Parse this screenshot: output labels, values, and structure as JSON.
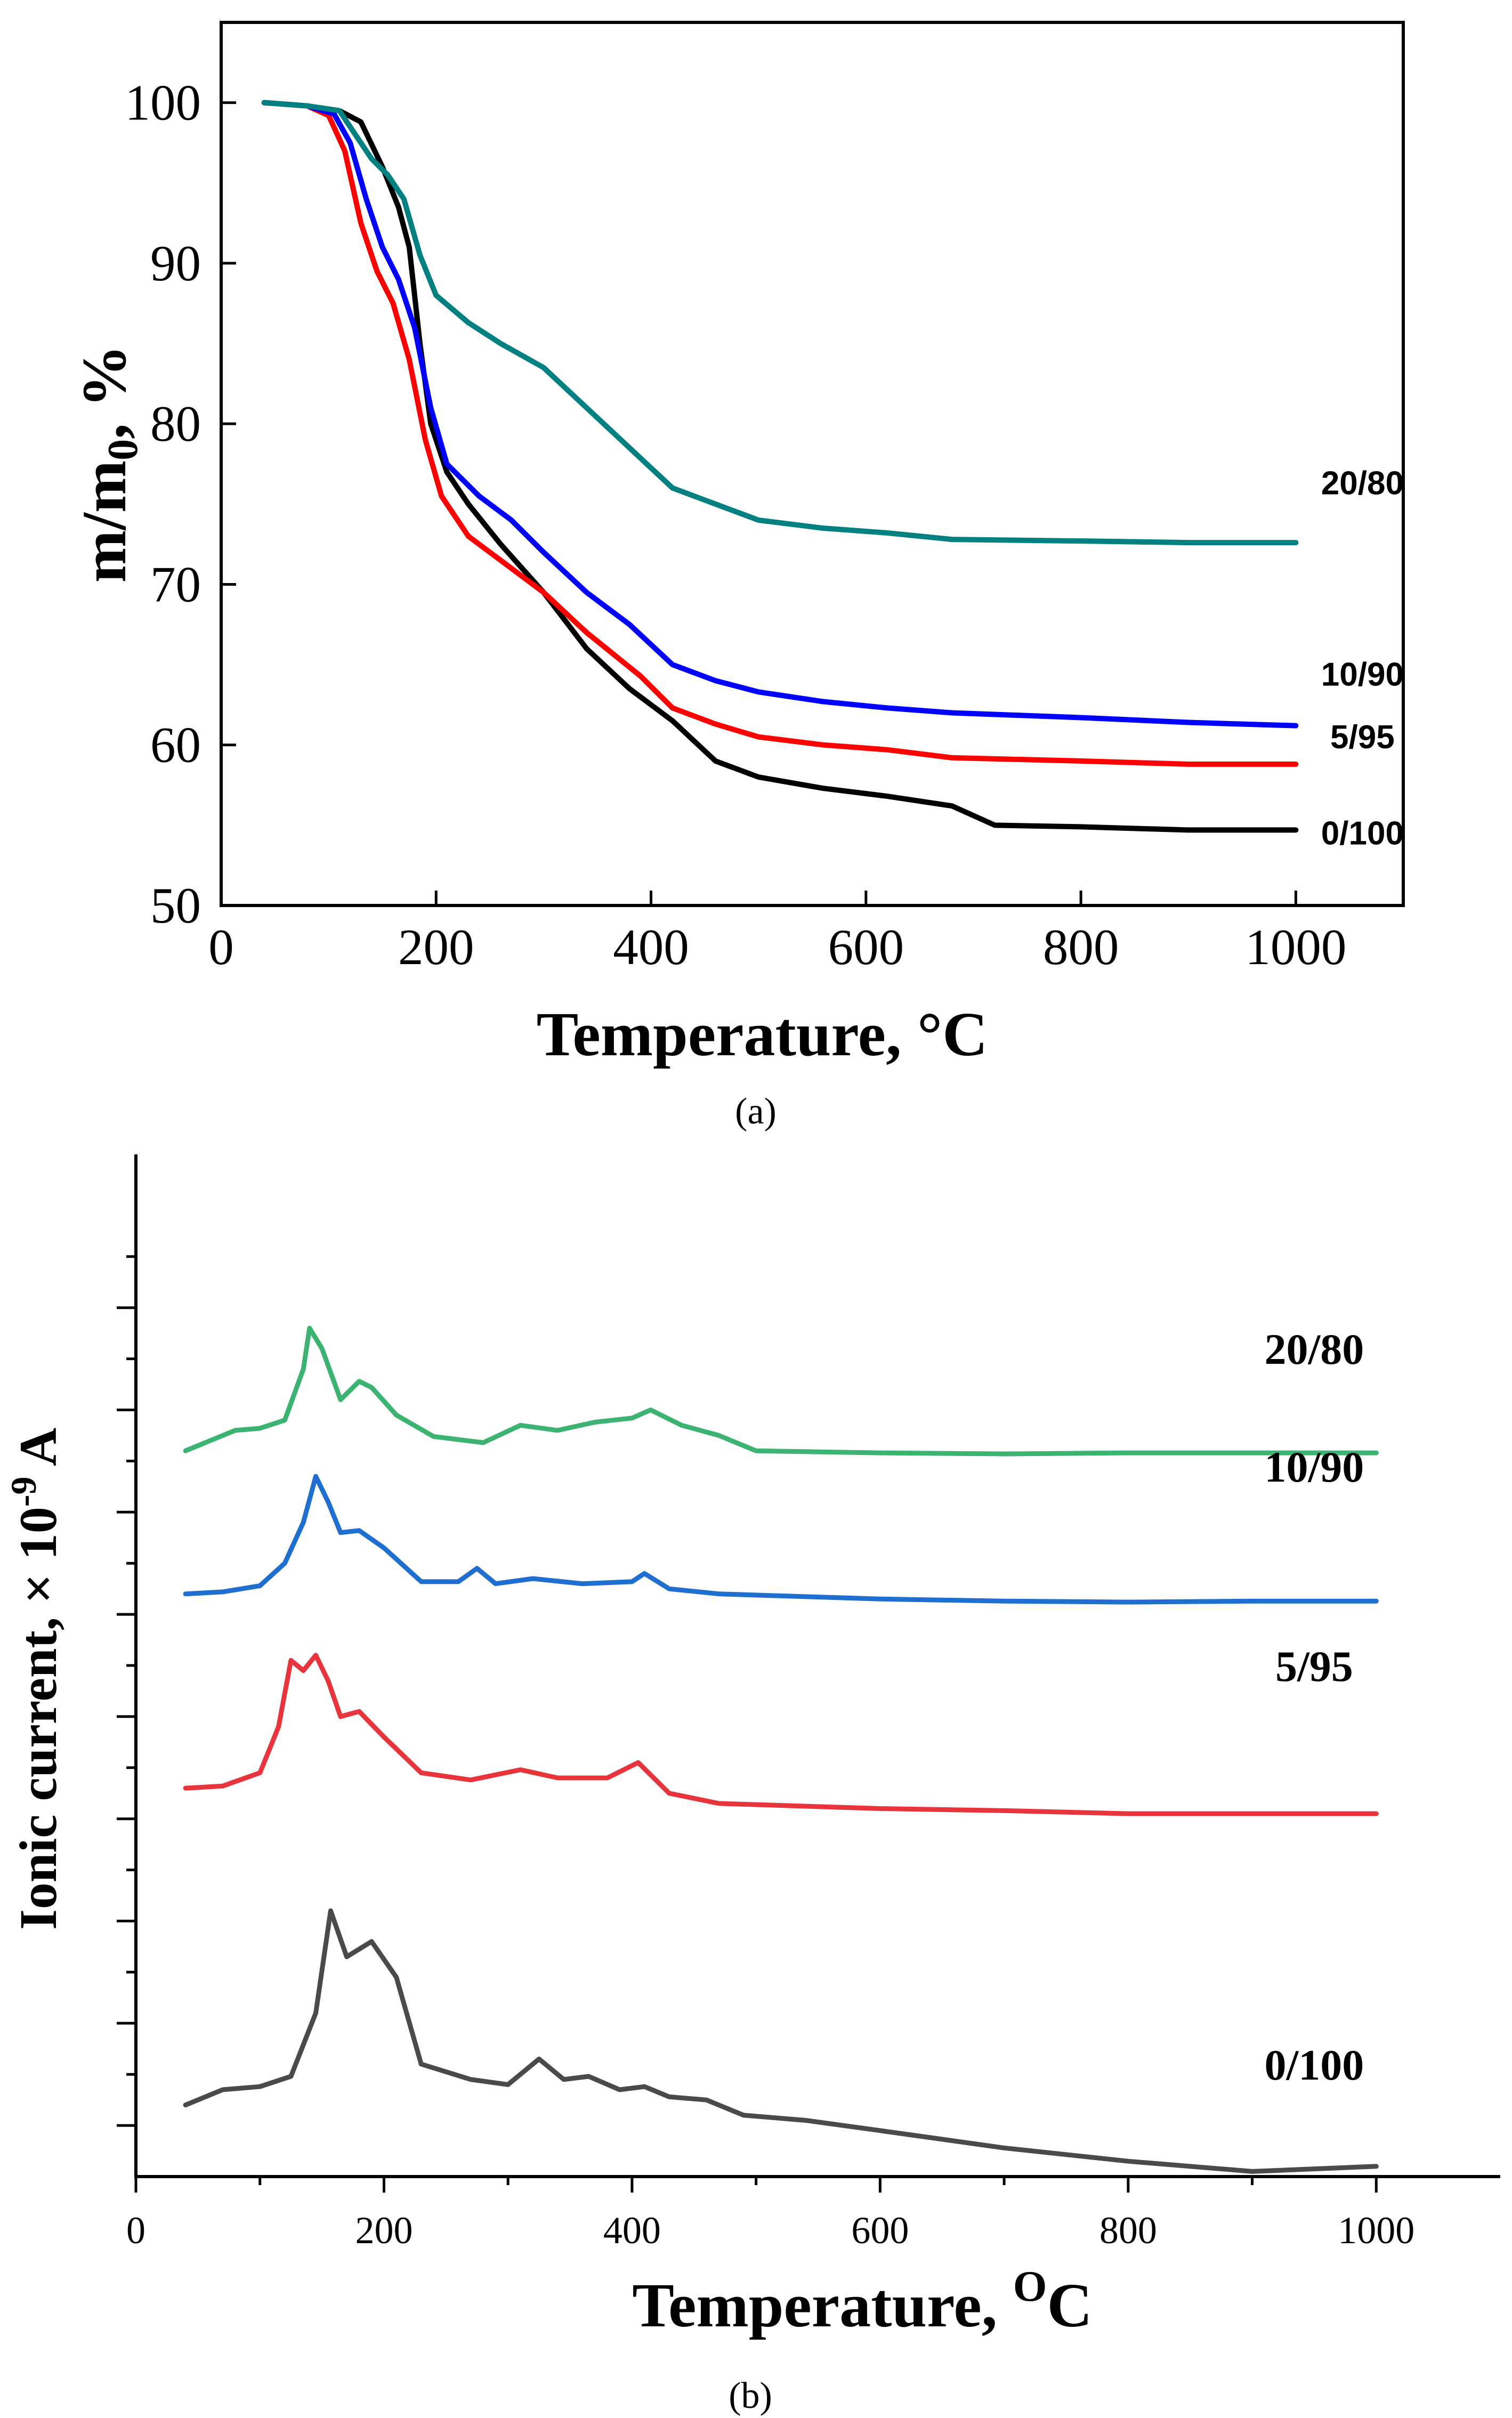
{
  "chart_data": [
    {
      "type": "line",
      "panel_label": "(a)",
      "xlabel": "Temperature, °C",
      "ylabel_main": "m/m",
      "ylabel_sub": "0",
      "ylabel_tail": ", %",
      "xlim": [
        0,
        1100
      ],
      "ylim": [
        50,
        105
      ],
      "xticks": [
        0,
        200,
        400,
        600,
        800,
        1000
      ],
      "yticks": [
        50,
        60,
        70,
        80,
        90,
        100
      ],
      "series": [
        {
          "name": "0/100",
          "color": "#000000",
          "label_at": [
            1000,
            53.8
          ],
          "points": [
            [
              40,
              100
            ],
            [
              80,
              99.8
            ],
            [
              110,
              99.5
            ],
            [
              130,
              98.8
            ],
            [
              150,
              96
            ],
            [
              165,
              93.5
            ],
            [
              175,
              91
            ],
            [
              185,
              85
            ],
            [
              195,
              80
            ],
            [
              210,
              77
            ],
            [
              230,
              75
            ],
            [
              260,
              72.5
            ],
            [
              300,
              69.5
            ],
            [
              340,
              66
            ],
            [
              380,
              63.5
            ],
            [
              420,
              61.5
            ],
            [
              460,
              59
            ],
            [
              500,
              58
            ],
            [
              560,
              57.3
            ],
            [
              620,
              56.8
            ],
            [
              680,
              56.2
            ],
            [
              720,
              55
            ],
            [
              800,
              54.9
            ],
            [
              900,
              54.7
            ],
            [
              1000,
              54.7
            ]
          ]
        },
        {
          "name": "5/95",
          "color": "#ff0000",
          "label_at": [
            1000,
            59.8
          ],
          "points": [
            [
              40,
              100
            ],
            [
              80,
              99.8
            ],
            [
              100,
              99.2
            ],
            [
              115,
              97
            ],
            [
              130,
              92.5
            ],
            [
              145,
              89.5
            ],
            [
              160,
              87.5
            ],
            [
              175,
              84
            ],
            [
              190,
              79
            ],
            [
              205,
              75.5
            ],
            [
              230,
              73
            ],
            [
              260,
              71.5
            ],
            [
              300,
              69.5
            ],
            [
              340,
              67
            ],
            [
              390,
              64.3
            ],
            [
              420,
              62.3
            ],
            [
              460,
              61.3
            ],
            [
              500,
              60.5
            ],
            [
              560,
              60
            ],
            [
              620,
              59.7
            ],
            [
              680,
              59.2
            ],
            [
              800,
              59
            ],
            [
              900,
              58.8
            ],
            [
              1000,
              58.8
            ]
          ]
        },
        {
          "name": "10/90",
          "color": "#0000ff",
          "label_at": [
            1000,
            63.7
          ],
          "points": [
            [
              40,
              100
            ],
            [
              80,
              99.8
            ],
            [
              105,
              99.3
            ],
            [
              120,
              97.5
            ],
            [
              135,
              94
            ],
            [
              150,
              91
            ],
            [
              165,
              89
            ],
            [
              180,
              86
            ],
            [
              195,
              81
            ],
            [
              210,
              77.5
            ],
            [
              240,
              75.5
            ],
            [
              270,
              74
            ],
            [
              300,
              72
            ],
            [
              340,
              69.5
            ],
            [
              380,
              67.5
            ],
            [
              420,
              65
            ],
            [
              460,
              64
            ],
            [
              500,
              63.3
            ],
            [
              560,
              62.7
            ],
            [
              620,
              62.3
            ],
            [
              680,
              62
            ],
            [
              800,
              61.7
            ],
            [
              900,
              61.4
            ],
            [
              1000,
              61.2
            ]
          ]
        },
        {
          "name": "20/80",
          "color": "#008080",
          "label_at": [
            1000,
            75.6
          ],
          "points": [
            [
              40,
              100
            ],
            [
              80,
              99.8
            ],
            [
              110,
              99.5
            ],
            [
              125,
              98
            ],
            [
              140,
              96.5
            ],
            [
              155,
              95.5
            ],
            [
              170,
              94
            ],
            [
              185,
              90.5
            ],
            [
              200,
              88
            ],
            [
              230,
              86.3
            ],
            [
              260,
              85
            ],
            [
              300,
              83.5
            ],
            [
              340,
              81
            ],
            [
              380,
              78.5
            ],
            [
              420,
              76
            ],
            [
              460,
              75
            ],
            [
              500,
              74
            ],
            [
              560,
              73.5
            ],
            [
              620,
              73.2
            ],
            [
              680,
              72.8
            ],
            [
              800,
              72.7
            ],
            [
              900,
              72.6
            ],
            [
              1000,
              72.6
            ]
          ]
        }
      ]
    },
    {
      "type": "line",
      "panel_label": "(b)",
      "xlabel_main": "Temperature, ",
      "xlabel_sup": "O",
      "xlabel_tail": "C",
      "ylabel_main": "Ionic current, × 10",
      "ylabel_sup": "-9",
      "ylabel_tail": " A",
      "xlim": [
        0,
        1100
      ],
      "ylim": [
        0,
        10
      ],
      "xticks": [
        0,
        200,
        400,
        600,
        800,
        1000
      ],
      "yticks": [
        0.5,
        1.5,
        2.5,
        3.5,
        4.5,
        5.5,
        6.5,
        7.5,
        8.5
      ],
      "minor_yticks": [
        1.0,
        2.0,
        3.0,
        4.0,
        5.0,
        6.0,
        7.0,
        8.0,
        9.0
      ],
      "y_values_note": "relative, offset curves; no numeric tick labels shown",
      "series": [
        {
          "name": "20/80",
          "color": "#3cb371",
          "label_at": [
            950,
            7.95
          ],
          "points": [
            [
              40,
              7.1
            ],
            [
              60,
              7.2
            ],
            [
              80,
              7.3
            ],
            [
              100,
              7.32
            ],
            [
              120,
              7.4
            ],
            [
              135,
              7.9
            ],
            [
              140,
              8.3
            ],
            [
              150,
              8.1
            ],
            [
              165,
              7.6
            ],
            [
              180,
              7.78
            ],
            [
              190,
              7.72
            ],
            [
              210,
              7.45
            ],
            [
              240,
              7.24
            ],
            [
              280,
              7.18
            ],
            [
              310,
              7.35
            ],
            [
              340,
              7.3
            ],
            [
              370,
              7.38
            ],
            [
              400,
              7.42
            ],
            [
              415,
              7.5
            ],
            [
              440,
              7.35
            ],
            [
              470,
              7.25
            ],
            [
              500,
              7.1
            ],
            [
              600,
              7.08
            ],
            [
              700,
              7.07
            ],
            [
              800,
              7.08
            ],
            [
              900,
              7.08
            ],
            [
              1000,
              7.08
            ]
          ]
        },
        {
          "name": "10/90",
          "color": "#1f6fd1",
          "label_at": [
            950,
            6.8
          ],
          "points": [
            [
              40,
              5.7
            ],
            [
              70,
              5.72
            ],
            [
              100,
              5.78
            ],
            [
              120,
              6.0
            ],
            [
              135,
              6.4
            ],
            [
              145,
              6.85
            ],
            [
              155,
              6.6
            ],
            [
              165,
              6.3
            ],
            [
              180,
              6.32
            ],
            [
              200,
              6.15
            ],
            [
              230,
              5.82
            ],
            [
              260,
              5.82
            ],
            [
              275,
              5.95
            ],
            [
              290,
              5.8
            ],
            [
              320,
              5.85
            ],
            [
              360,
              5.8
            ],
            [
              400,
              5.82
            ],
            [
              410,
              5.9
            ],
            [
              430,
              5.75
            ],
            [
              470,
              5.7
            ],
            [
              600,
              5.65
            ],
            [
              700,
              5.63
            ],
            [
              800,
              5.62
            ],
            [
              900,
              5.63
            ],
            [
              1000,
              5.63
            ]
          ]
        },
        {
          "name": "5/95",
          "color": "#e8343c",
          "label_at": [
            950,
            4.85
          ],
          "points": [
            [
              40,
              3.8
            ],
            [
              70,
              3.82
            ],
            [
              100,
              3.95
            ],
            [
              115,
              4.4
            ],
            [
              125,
              5.05
            ],
            [
              135,
              4.95
            ],
            [
              145,
              5.1
            ],
            [
              155,
              4.85
            ],
            [
              165,
              4.5
            ],
            [
              180,
              4.55
            ],
            [
              200,
              4.3
            ],
            [
              230,
              3.95
            ],
            [
              270,
              3.88
            ],
            [
              310,
              3.98
            ],
            [
              340,
              3.9
            ],
            [
              380,
              3.9
            ],
            [
              405,
              4.05
            ],
            [
              430,
              3.75
            ],
            [
              470,
              3.65
            ],
            [
              600,
              3.6
            ],
            [
              700,
              3.58
            ],
            [
              800,
              3.55
            ],
            [
              900,
              3.55
            ],
            [
              1000,
              3.55
            ]
          ]
        },
        {
          "name": "0/100",
          "color": "#4a4a4a",
          "label_at": [
            950,
            0.95
          ],
          "points": [
            [
              40,
              0.7
            ],
            [
              70,
              0.85
            ],
            [
              100,
              0.88
            ],
            [
              125,
              0.98
            ],
            [
              145,
              1.6
            ],
            [
              157,
              2.6
            ],
            [
              170,
              2.15
            ],
            [
              190,
              2.3
            ],
            [
              210,
              1.95
            ],
            [
              230,
              1.1
            ],
            [
              270,
              0.95
            ],
            [
              300,
              0.9
            ],
            [
              325,
              1.15
            ],
            [
              345,
              0.95
            ],
            [
              365,
              0.98
            ],
            [
              390,
              0.85
            ],
            [
              410,
              0.88
            ],
            [
              430,
              0.78
            ],
            [
              460,
              0.75
            ],
            [
              490,
              0.6
            ],
            [
              540,
              0.55
            ],
            [
              600,
              0.45
            ],
            [
              700,
              0.28
            ],
            [
              800,
              0.15
            ],
            [
              900,
              0.05
            ],
            [
              1000,
              0.1
            ]
          ]
        }
      ]
    }
  ]
}
